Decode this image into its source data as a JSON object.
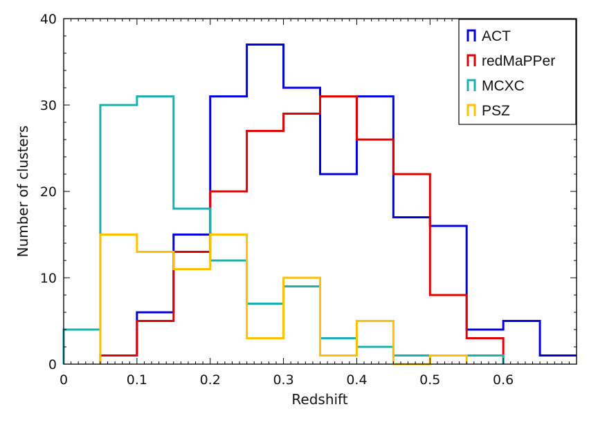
{
  "chart_data": {
    "type": "histogram",
    "xlabel": "Redshift",
    "ylabel": "Number of clusters",
    "xlim": [
      0,
      0.7
    ],
    "ylim": [
      0,
      40
    ],
    "x_ticks": [
      {
        "value": 0,
        "label": "0"
      },
      {
        "value": 0.1,
        "label": "0.1"
      },
      {
        "value": 0.2,
        "label": "0.2"
      },
      {
        "value": 0.3,
        "label": "0.3"
      },
      {
        "value": 0.4,
        "label": "0.4"
      },
      {
        "value": 0.5,
        "label": "0.5"
      },
      {
        "value": 0.6,
        "label": "0.6"
      }
    ],
    "y_ticks": [
      {
        "value": 0,
        "label": "0"
      },
      {
        "value": 10,
        "label": "10"
      },
      {
        "value": 20,
        "label": "20"
      },
      {
        "value": 30,
        "label": "30"
      },
      {
        "value": 40,
        "label": "40"
      }
    ],
    "grid": false,
    "legend_position": "top-right",
    "series": [
      {
        "name": "ACT",
        "color": "#0000dd",
        "bins": [
          {
            "x0": 0.05,
            "x1": 0.1,
            "y": 1
          },
          {
            "x0": 0.1,
            "x1": 0.15,
            "y": 6
          },
          {
            "x0": 0.15,
            "x1": 0.2,
            "y": 15
          },
          {
            "x0": 0.2,
            "x1": 0.25,
            "y": 31
          },
          {
            "x0": 0.25,
            "x1": 0.3,
            "y": 37
          },
          {
            "x0": 0.3,
            "x1": 0.35,
            "y": 32
          },
          {
            "x0": 0.35,
            "x1": 0.4,
            "y": 22
          },
          {
            "x0": 0.4,
            "x1": 0.45,
            "y": 31
          },
          {
            "x0": 0.45,
            "x1": 0.5,
            "y": 17
          },
          {
            "x0": 0.5,
            "x1": 0.55,
            "y": 16
          },
          {
            "x0": 0.55,
            "x1": 0.6,
            "y": 4
          },
          {
            "x0": 0.6,
            "x1": 0.65,
            "y": 5
          },
          {
            "x0": 0.65,
            "x1": 0.7,
            "y": 1
          }
        ]
      },
      {
        "name": "redMaPPer",
        "color": "#e00000",
        "bins": [
          {
            "x0": 0.05,
            "x1": 0.1,
            "y": 1
          },
          {
            "x0": 0.1,
            "x1": 0.15,
            "y": 5
          },
          {
            "x0": 0.15,
            "x1": 0.2,
            "y": 13
          },
          {
            "x0": 0.2,
            "x1": 0.25,
            "y": 20
          },
          {
            "x0": 0.25,
            "x1": 0.3,
            "y": 27
          },
          {
            "x0": 0.3,
            "x1": 0.35,
            "y": 29
          },
          {
            "x0": 0.35,
            "x1": 0.4,
            "y": 31
          },
          {
            "x0": 0.4,
            "x1": 0.45,
            "y": 26
          },
          {
            "x0": 0.45,
            "x1": 0.5,
            "y": 22
          },
          {
            "x0": 0.5,
            "x1": 0.55,
            "y": 8
          },
          {
            "x0": 0.55,
            "x1": 0.6,
            "y": 3
          }
        ]
      },
      {
        "name": "MCXC",
        "color": "#1ab0b0",
        "bins": [
          {
            "x0": 0.0,
            "x1": 0.05,
            "y": 4
          },
          {
            "x0": 0.05,
            "x1": 0.1,
            "y": 30
          },
          {
            "x0": 0.1,
            "x1": 0.15,
            "y": 31
          },
          {
            "x0": 0.15,
            "x1": 0.2,
            "y": 18
          },
          {
            "x0": 0.2,
            "x1": 0.25,
            "y": 12
          },
          {
            "x0": 0.25,
            "x1": 0.3,
            "y": 7
          },
          {
            "x0": 0.3,
            "x1": 0.35,
            "y": 9
          },
          {
            "x0": 0.35,
            "x1": 0.4,
            "y": 3
          },
          {
            "x0": 0.4,
            "x1": 0.45,
            "y": 2
          },
          {
            "x0": 0.45,
            "x1": 0.5,
            "y": 1
          },
          {
            "x0": 0.5,
            "x1": 0.55,
            "y": 1
          },
          {
            "x0": 0.55,
            "x1": 0.6,
            "y": 1
          }
        ]
      },
      {
        "name": "PSZ",
        "color": "#ffc000",
        "bins": [
          {
            "x0": 0.05,
            "x1": 0.1,
            "y": 15
          },
          {
            "x0": 0.1,
            "x1": 0.15,
            "y": 13
          },
          {
            "x0": 0.15,
            "x1": 0.2,
            "y": 11
          },
          {
            "x0": 0.2,
            "x1": 0.25,
            "y": 15
          },
          {
            "x0": 0.25,
            "x1": 0.3,
            "y": 3
          },
          {
            "x0": 0.3,
            "x1": 0.35,
            "y": 10
          },
          {
            "x0": 0.35,
            "x1": 0.4,
            "y": 1
          },
          {
            "x0": 0.4,
            "x1": 0.45,
            "y": 5
          },
          {
            "x0": 0.45,
            "x1": 0.5,
            "y": 0
          },
          {
            "x0": 0.5,
            "x1": 0.55,
            "y": 1
          }
        ]
      }
    ]
  }
}
